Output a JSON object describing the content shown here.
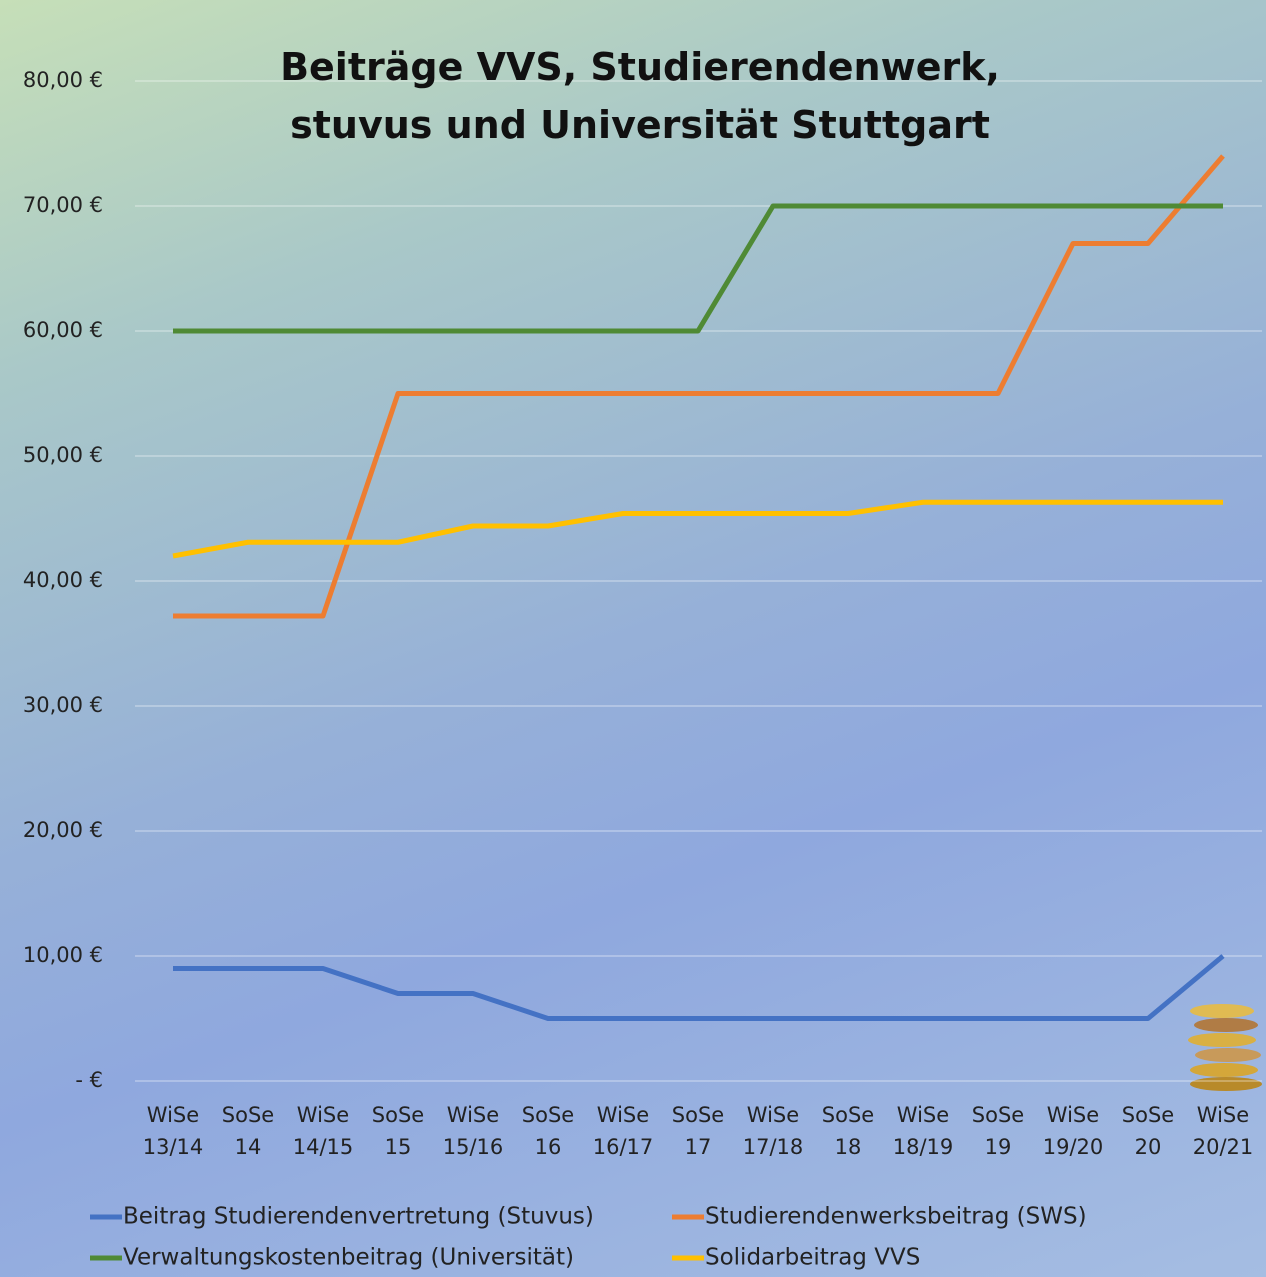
{
  "chart_data": {
    "type": "line",
    "title": "Beiträge VVS, Studierendenwerk, stuvus und Universität Stuttgart",
    "categories": [
      "WiSe 13/14",
      "SoSe 14",
      "WiSe 14/15",
      "SoSe 15",
      "WiSe 15/16",
      "SoSe 16",
      "WiSe 16/17",
      "SoSe 17",
      "WiSe 17/18",
      "SoSe 18",
      "WiSe 18/19",
      "SoSe 19",
      "WiSe 19/20",
      "SoSe 20",
      "WiSe 20/21"
    ],
    "series": [
      {
        "name": "Beitrag Studierendenvertretung (Stuvus)",
        "color": "#4472c4",
        "values": [
          9,
          9,
          9,
          7,
          7,
          5,
          5,
          5,
          5,
          5,
          5,
          5,
          5,
          5,
          10
        ]
      },
      {
        "name": "Studierendenwerksbeitrag (SWS)",
        "color": "#ed7d31",
        "values": [
          37.2,
          37.2,
          37.2,
          55,
          55,
          55,
          55,
          55,
          55,
          55,
          55,
          55,
          67,
          67,
          74
        ]
      },
      {
        "name": "Verwaltungskostenbeitrag (Universität)",
        "color": "#4f8a35",
        "values": [
          60,
          60,
          60,
          60,
          60,
          60,
          60,
          60,
          70,
          70,
          70,
          70,
          70,
          70,
          70
        ]
      },
      {
        "name": "Solidarbeitrag VVS",
        "color": "#ffc000",
        "values": [
          42,
          43.1,
          43.1,
          43.1,
          44.4,
          44.4,
          45.4,
          45.4,
          45.4,
          45.4,
          46.3,
          46.3,
          46.3,
          46.3,
          46.3
        ]
      }
    ],
    "ylim": [
      0,
      80
    ],
    "yticks": [
      {
        "value": 0,
        "label": "-   €"
      },
      {
        "value": 10,
        "label": "10,00 €"
      },
      {
        "value": 20,
        "label": "20,00 €"
      },
      {
        "value": 30,
        "label": "30,00 €"
      },
      {
        "value": 40,
        "label": "40,00 €"
      },
      {
        "value": 50,
        "label": "50,00 €"
      },
      {
        "value": 60,
        "label": "60,00 €"
      },
      {
        "value": 70,
        "label": "70,00 €"
      },
      {
        "value": 80,
        "label": "80,00 €"
      }
    ],
    "grid": true
  }
}
